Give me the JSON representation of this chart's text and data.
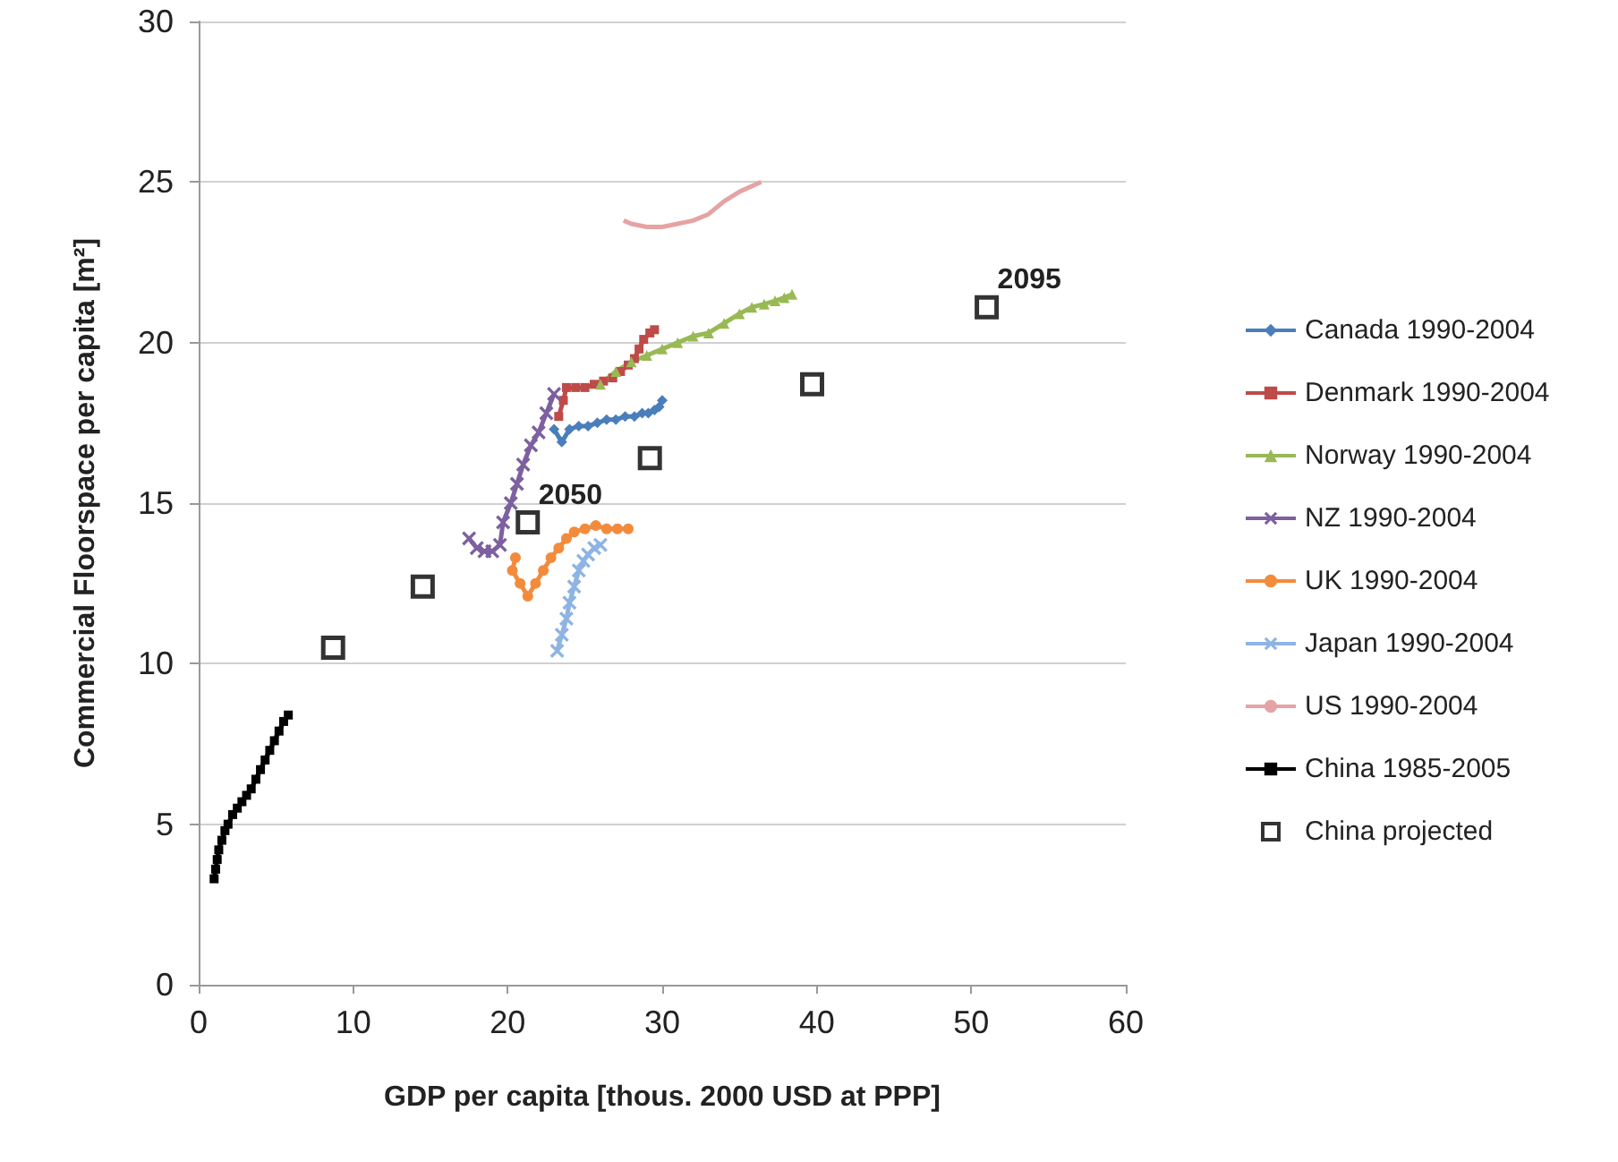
{
  "chart_data": {
    "type": "line",
    "xlabel": "GDP per capita [thous. 2000 USD at PPP]",
    "ylabel": "Commercial Floorspace per capita [m²]",
    "xlim": [
      0,
      60
    ],
    "xticks": [
      0,
      10,
      20,
      30,
      40,
      50,
      60
    ],
    "ylim": [
      0,
      30
    ],
    "yticks": [
      0,
      5,
      10,
      15,
      20,
      25,
      30
    ],
    "grid": "y",
    "legend": "right",
    "series": [
      {
        "name": "Canada 1990-2004",
        "color": "#4a7ebb",
        "marker": "diamond",
        "x": [
          23.0,
          23.5,
          24.0,
          24.6,
          25.2,
          25.8,
          26.4,
          27.0,
          27.6,
          28.2,
          28.7,
          29.1,
          29.5,
          29.8,
          30.0
        ],
        "values": [
          17.3,
          16.9,
          17.3,
          17.4,
          17.4,
          17.5,
          17.6,
          17.6,
          17.7,
          17.7,
          17.8,
          17.8,
          17.9,
          18.0,
          18.2
        ]
      },
      {
        "name": "Denmark 1990-2004",
        "color": "#be4b48",
        "marker": "square",
        "x": [
          23.3,
          23.6,
          23.8,
          24.4,
          25.0,
          25.6,
          26.2,
          26.8,
          27.3,
          27.8,
          28.2,
          28.5,
          28.8,
          29.2,
          29.5
        ],
        "values": [
          17.7,
          18.2,
          18.6,
          18.6,
          18.6,
          18.7,
          18.8,
          18.9,
          19.1,
          19.3,
          19.5,
          19.8,
          20.1,
          20.3,
          20.4
        ]
      },
      {
        "name": "Norway 1990-2004",
        "color": "#98b954",
        "marker": "triangle",
        "x": [
          26.0,
          27.0,
          28.0,
          29.0,
          30.0,
          31.0,
          32.0,
          33.0,
          34.0,
          35.0,
          35.8,
          36.6,
          37.3,
          37.9,
          38.4
        ],
        "values": [
          18.7,
          19.1,
          19.4,
          19.6,
          19.8,
          20.0,
          20.2,
          20.3,
          20.6,
          20.9,
          21.1,
          21.2,
          21.3,
          21.4,
          21.5
        ]
      },
      {
        "name": "NZ 1990-2004",
        "color": "#7d60a0",
        "marker": "cross",
        "x": [
          17.5,
          18.0,
          18.5,
          19.0,
          19.5,
          19.7,
          20.2,
          20.6,
          21.0,
          21.5,
          22.0,
          22.5,
          23.0
        ],
        "values": [
          13.9,
          13.6,
          13.5,
          13.5,
          13.7,
          14.4,
          15.0,
          15.6,
          16.2,
          16.8,
          17.2,
          17.8,
          18.4
        ]
      },
      {
        "name": "UK 1990-2004",
        "color": "#f38b3c",
        "marker": "circle",
        "x": [
          20.5,
          20.3,
          20.8,
          21.3,
          21.8,
          22.3,
          22.8,
          23.3,
          23.8,
          24.3,
          25.0,
          25.7,
          26.4,
          27.1,
          27.8
        ],
        "values": [
          13.3,
          12.9,
          12.5,
          12.1,
          12.5,
          12.9,
          13.3,
          13.6,
          13.9,
          14.1,
          14.2,
          14.3,
          14.2,
          14.2,
          14.2
        ]
      },
      {
        "name": "Japan 1990-2004",
        "color": "#8eb4e3",
        "marker": "cross",
        "x": [
          23.2,
          23.5,
          23.8,
          24.0,
          24.3,
          24.6,
          24.9,
          25.2,
          25.6,
          26.0
        ],
        "values": [
          10.4,
          10.9,
          11.4,
          11.9,
          12.4,
          12.9,
          13.2,
          13.4,
          13.6,
          13.7
        ]
      },
      {
        "name": "US 1990-2004",
        "color": "#e6a3a3",
        "marker": "none",
        "x": [
          27.5,
          28.0,
          29.0,
          30.0,
          31.0,
          32.0,
          33.0,
          34.0,
          35.0,
          36.4
        ],
        "values": [
          23.8,
          23.7,
          23.6,
          23.6,
          23.7,
          23.8,
          24.0,
          24.4,
          24.7,
          25.0
        ]
      },
      {
        "name": "China 1985-2005",
        "color": "#000000",
        "marker": "square",
        "x": [
          1.0,
          1.1,
          1.2,
          1.3,
          1.5,
          1.7,
          1.9,
          2.2,
          2.5,
          2.8,
          3.1,
          3.4,
          3.7,
          4.0,
          4.3,
          4.6,
          4.9,
          5.2,
          5.5,
          5.8
        ],
        "values": [
          3.3,
          3.6,
          3.9,
          4.2,
          4.5,
          4.8,
          5.0,
          5.3,
          5.5,
          5.7,
          5.9,
          6.1,
          6.4,
          6.7,
          7.0,
          7.3,
          7.6,
          7.9,
          8.2,
          8.4
        ]
      },
      {
        "name": "China projected",
        "type": "scatter",
        "color": "#000000",
        "marker": "square",
        "x": [
          8.7,
          14.5,
          21.3,
          29.2,
          39.7,
          51.0
        ],
        "values": [
          10.5,
          12.4,
          14.4,
          16.4,
          18.7,
          21.1
        ]
      }
    ],
    "annotations": [
      {
        "text": "2050",
        "x": 21.3,
        "y": 14.4
      },
      {
        "text": "2095",
        "x": 51.0,
        "y": 21.1
      }
    ]
  }
}
